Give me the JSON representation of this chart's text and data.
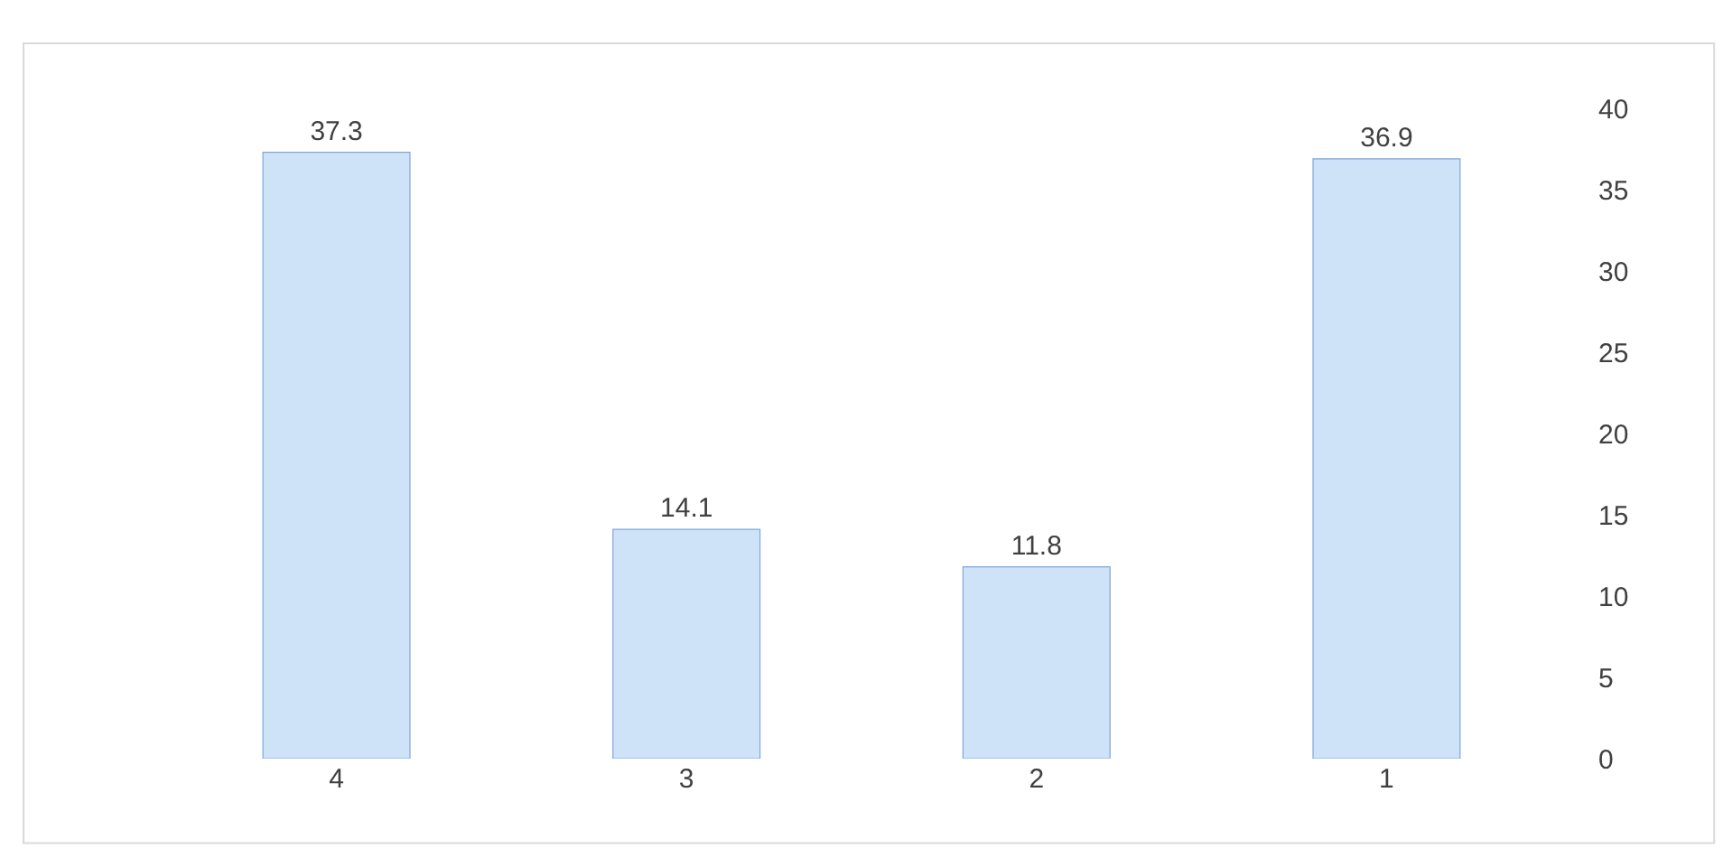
{
  "chart_data": {
    "type": "bar",
    "categories": [
      "4",
      "3",
      "2",
      "1"
    ],
    "values": [
      37.3,
      14.1,
      11.8,
      36.9
    ],
    "color": "#cfe3f8",
    "ylim": [
      0,
      40
    ],
    "yticks": [
      0,
      5,
      10,
      15,
      20,
      25,
      30,
      35,
      40
    ],
    "data_labels": true
  }
}
